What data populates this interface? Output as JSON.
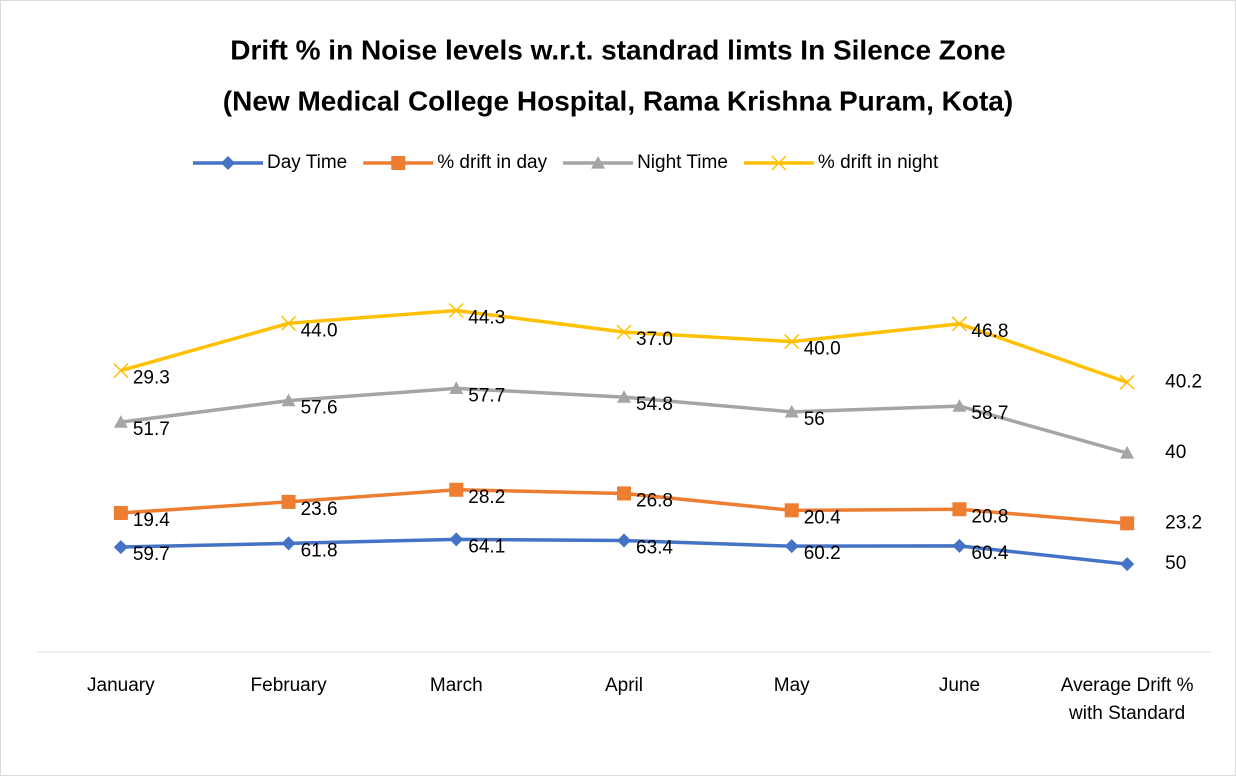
{
  "chart_data": {
    "type": "line",
    "stacked": true,
    "title": [
      "Drift % in Noise levels w.r.t. standrad limts In Silence Zone",
      "(New Medical College Hospital, Rama Krishna Puram, Kota)"
    ],
    "categories": [
      "January",
      "February",
      "March",
      "April",
      "May",
      "June",
      "Average Drift % with Standard"
    ],
    "series": [
      {
        "name": "Day Time",
        "color": "#4472c4",
        "marker": "diamond",
        "values": [
          59.7,
          61.8,
          64.1,
          63.4,
          60.2,
          60.4,
          50
        ]
      },
      {
        "name": "% drift in day",
        "color": "#ed7d31",
        "marker": "square",
        "values": [
          19.4,
          23.6,
          28.2,
          26.8,
          20.4,
          20.8,
          23.2
        ]
      },
      {
        "name": "Night Time",
        "color": "#a5a5a5",
        "marker": "triangle",
        "values": [
          51.7,
          57.6,
          57.7,
          54.8,
          56,
          58.7,
          40
        ]
      },
      {
        "name": "% drift in night",
        "color": "#ffc000",
        "marker": "x",
        "values": [
          29.3,
          44,
          44.3,
          37,
          40,
          46.8,
          40.2
        ],
        "value_labels": [
          "29.3",
          "44.0",
          "44.3",
          "37.0",
          "40.0",
          "46.8",
          "40.2"
        ]
      }
    ],
    "ylim": [
      0,
      260
    ],
    "legend": "top"
  }
}
